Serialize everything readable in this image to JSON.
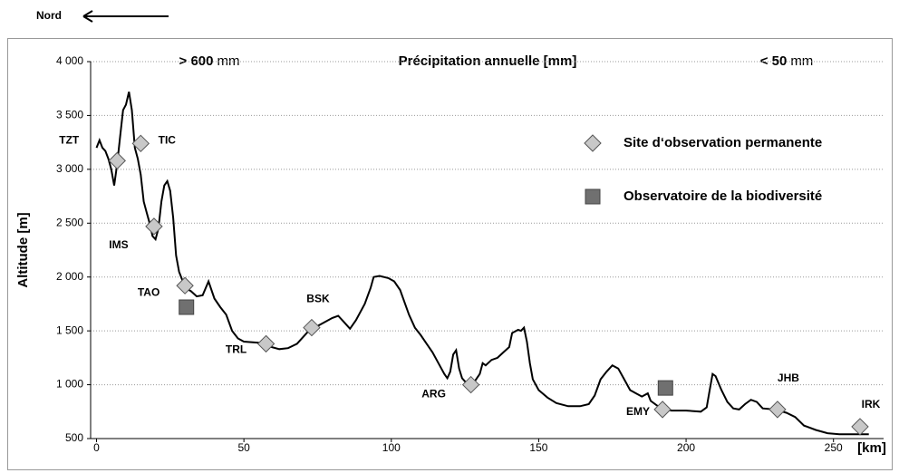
{
  "chart_data": {
    "type": "line",
    "north_label": "Nord",
    "title": "Précipitation annuelle [mm]",
    "precipitation_high": {
      "label": "> 600",
      "unit": "mm"
    },
    "precipitation_low": {
      "label": "< 50",
      "unit": "mm"
    },
    "ylabel": "Altitude [m]",
    "xlabel": "[km]",
    "color": "#000000",
    "grid": true,
    "xlim": [
      -2,
      267
    ],
    "ylim": [
      500,
      4000
    ],
    "xticks": [
      0,
      50,
      100,
      150,
      200,
      250
    ],
    "yticks": [
      500,
      {
        "value": 1000,
        "label": "1 000"
      },
      {
        "value": 1500,
        "label": "1 500"
      },
      {
        "value": 2000,
        "label": "2 000"
      },
      {
        "value": 2500,
        "label": "2 500"
      },
      {
        "value": 3000,
        "label": "3 000"
      },
      {
        "value": 3500,
        "label": "3 500"
      },
      {
        "value": 4000,
        "label": "4 000"
      }
    ],
    "x": [
      0,
      1,
      2,
      3,
      4,
      5,
      6,
      7,
      8,
      9,
      10,
      11,
      12,
      13,
      14,
      15,
      16,
      17,
      18,
      19,
      20,
      21,
      22,
      23,
      24,
      25,
      26,
      27,
      28,
      29,
      30,
      32,
      34,
      36,
      38,
      40,
      42,
      44,
      46,
      48,
      50,
      55,
      58,
      62,
      65,
      68,
      72,
      76,
      80,
      82,
      84,
      86,
      88,
      91,
      93,
      94,
      96,
      99,
      101,
      103,
      106,
      108,
      110,
      112,
      114,
      116,
      118,
      119,
      120,
      121,
      122,
      123,
      124,
      126,
      128,
      130,
      131,
      132,
      134,
      136,
      138,
      140,
      141,
      143,
      144,
      145,
      146,
      147,
      148,
      150,
      153,
      156,
      160,
      164,
      167,
      169,
      171,
      173,
      175,
      177,
      179,
      181,
      183,
      185,
      187,
      188,
      190,
      192,
      195,
      200,
      205,
      207,
      208,
      209,
      210,
      212,
      214,
      216,
      218,
      220,
      222,
      224,
      226,
      230,
      234,
      237,
      240,
      244,
      248,
      252,
      258,
      262
    ],
    "values": [
      3200,
      3270,
      3200,
      3170,
      3100,
      3000,
      2850,
      3050,
      3300,
      3550,
      3600,
      3720,
      3550,
      3200,
      3100,
      2950,
      2700,
      2600,
      2500,
      2380,
      2350,
      2450,
      2700,
      2850,
      2890,
      2800,
      2550,
      2200,
      2050,
      1980,
      1900,
      1870,
      1820,
      1830,
      1960,
      1800,
      1720,
      1650,
      1500,
      1430,
      1400,
      1390,
      1360,
      1330,
      1340,
      1380,
      1500,
      1560,
      1620,
      1640,
      1580,
      1520,
      1600,
      1750,
      1900,
      2000,
      2010,
      1990,
      1960,
      1880,
      1650,
      1530,
      1460,
      1380,
      1300,
      1200,
      1100,
      1060,
      1120,
      1280,
      1320,
      1150,
      1060,
      1000,
      1020,
      1100,
      1200,
      1180,
      1230,
      1250,
      1300,
      1350,
      1480,
      1510,
      1500,
      1530,
      1400,
      1200,
      1050,
      950,
      880,
      830,
      800,
      800,
      820,
      900,
      1050,
      1120,
      1180,
      1150,
      1050,
      950,
      920,
      890,
      920,
      850,
      810,
      780,
      760,
      760,
      750,
      790,
      950,
      1100,
      1080,
      950,
      840,
      780,
      770,
      820,
      860,
      840,
      780,
      770,
      740,
      700,
      620,
      580,
      550,
      540,
      540,
      540
    ],
    "sites": {
      "name": "Site d‘observation permanente",
      "color": "#c8c8c8",
      "points": [
        {
          "label": "TZT",
          "x": 7,
          "y": 3080
        },
        {
          "label": "TIC",
          "x": 15,
          "y": 3240
        },
        {
          "label": "IMS",
          "x": 19.5,
          "y": 2470
        },
        {
          "label": "TAO",
          "x": 30,
          "y": 1920
        },
        {
          "label": "TRL",
          "x": 57.5,
          "y": 1380
        },
        {
          "label": "BSK",
          "x": 73,
          "y": 1530
        },
        {
          "label": "ARG",
          "x": 127,
          "y": 1000
        },
        {
          "label": "EMY",
          "x": 192,
          "y": 770
        },
        {
          "label": "JHB",
          "x": 231,
          "y": 770
        },
        {
          "label": "IRK",
          "x": 259,
          "y": 610
        }
      ]
    },
    "observatories": {
      "name": "Observatoire de la biodiversité",
      "color": "#707070",
      "points": [
        {
          "x": 30.5,
          "y": 1720
        },
        {
          "x": 193,
          "y": 970
        }
      ]
    }
  }
}
